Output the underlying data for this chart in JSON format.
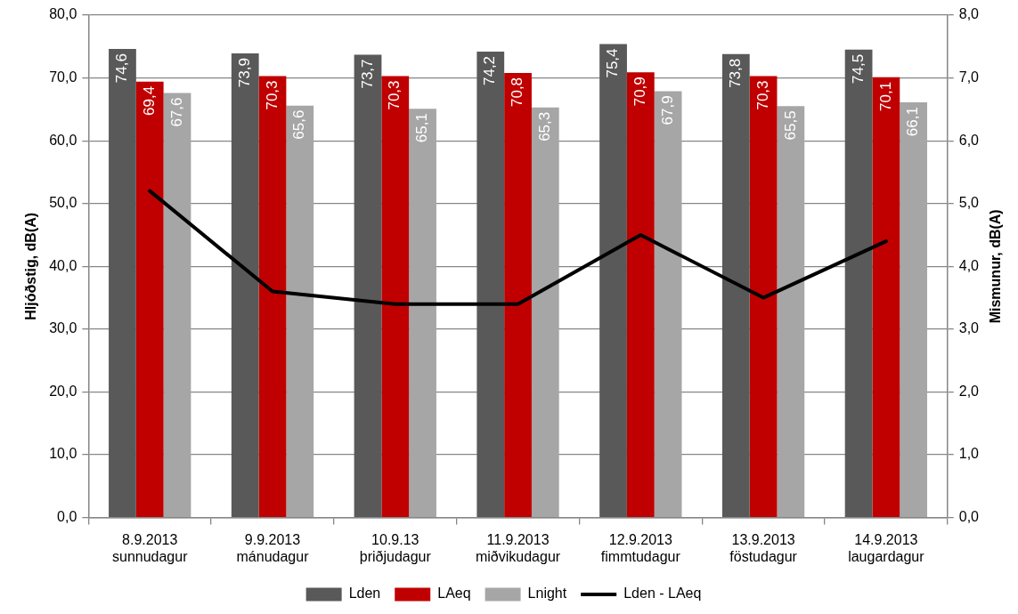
{
  "chart_data": {
    "type": "bar",
    "categories": [
      "8.9.2013\nsunnudagur",
      "9.9.2013\nmánudagur",
      "10.9.13\nþriðjudagur",
      "11.9.2013\nmiðvikudagur",
      "12.9.2013\nfimmtudagur",
      "13.9.2013\nföstudagur",
      "14.9.2013\nlaugardagur"
    ],
    "series": [
      {
        "name": "Lden",
        "color": "#595959",
        "values": [
          74.6,
          73.9,
          73.7,
          74.2,
          75.4,
          73.8,
          74.5
        ],
        "value_labels": [
          "74,6",
          "73,9",
          "73,7",
          "74,2",
          "75,4",
          "73,8",
          "74,5"
        ]
      },
      {
        "name": "LAeq",
        "color": "#c00000",
        "values": [
          69.4,
          70.3,
          70.3,
          70.8,
          70.9,
          70.3,
          70.1
        ],
        "value_labels": [
          "69,4",
          "70,3",
          "70,3",
          "70,8",
          "70,9",
          "70,3",
          "70,1"
        ]
      },
      {
        "name": "Lnight",
        "color": "#a6a6a6",
        "values": [
          67.6,
          65.6,
          65.1,
          65.3,
          67.9,
          65.5,
          66.1
        ],
        "value_labels": [
          "67,6",
          "65,6",
          "65,1",
          "65,3",
          "67,9",
          "65,5",
          "66,1"
        ]
      },
      {
        "name": "Lden - LAeq",
        "type": "line",
        "axis": "y2",
        "color": "#000000",
        "marker": "none",
        "line_style": "solid",
        "values": [
          5.2,
          3.6,
          3.4,
          3.4,
          4.5,
          3.5,
          4.4
        ]
      }
    ],
    "ylabel": "Hljóðstig, dB(A)",
    "y2label": "Mismunur, dB(A)",
    "ylim": [
      0,
      80
    ],
    "yticks": [
      {
        "value": 0,
        "label": "0,0"
      },
      {
        "value": 10,
        "label": "10,0"
      },
      {
        "value": 20,
        "label": "20,0"
      },
      {
        "value": 30,
        "label": "30,0"
      },
      {
        "value": 40,
        "label": "40,0"
      },
      {
        "value": 50,
        "label": "50,0"
      },
      {
        "value": 60,
        "label": "60,0"
      },
      {
        "value": 70,
        "label": "70,0"
      },
      {
        "value": 80,
        "label": "80,0"
      }
    ],
    "y2lim": [
      0,
      8
    ],
    "y2ticks": [
      {
        "value": 0,
        "label": "0,0"
      },
      {
        "value": 1,
        "label": "1,0"
      },
      {
        "value": 2,
        "label": "2,0"
      },
      {
        "value": 3,
        "label": "3,0"
      },
      {
        "value": 4,
        "label": "4,0"
      },
      {
        "value": 5,
        "label": "5,0"
      },
      {
        "value": 6,
        "label": "6,0"
      },
      {
        "value": 7,
        "label": "7,0"
      },
      {
        "value": 8,
        "label": "8,0"
      }
    ],
    "grid": "y",
    "legend": "bottom"
  }
}
